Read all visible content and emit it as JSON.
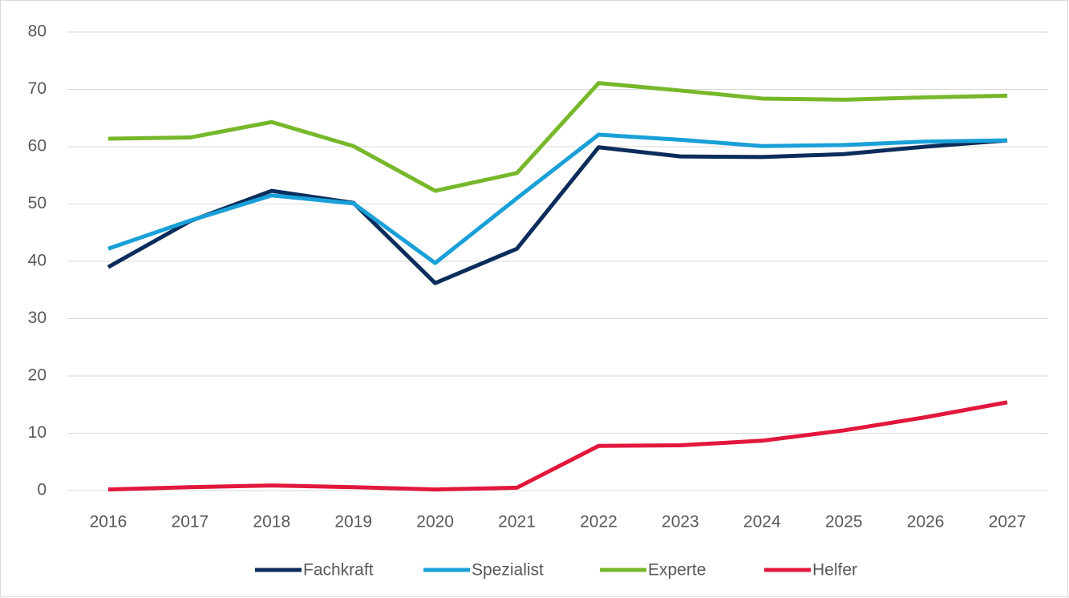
{
  "chart_data": {
    "type": "line",
    "categories": [
      "2016",
      "2017",
      "2018",
      "2019",
      "2020",
      "2021",
      "2022",
      "2023",
      "2024",
      "2025",
      "2026",
      "2027"
    ],
    "series": [
      {
        "name": "Fachkraft",
        "color": "#0b2d5b",
        "values": [
          39.0,
          47.0,
          52.3,
          50.2,
          36.2,
          42.2,
          59.9,
          58.3,
          58.2,
          58.7,
          60.0,
          61.1
        ]
      },
      {
        "name": "Spezialist",
        "color": "#1aa0d8",
        "values": [
          42.2,
          47.1,
          51.5,
          50.1,
          39.7,
          51.0,
          62.1,
          61.2,
          60.1,
          60.3,
          60.9,
          61.1
        ]
      },
      {
        "name": "Experte",
        "color": "#76b82a",
        "values": [
          61.4,
          61.6,
          64.3,
          60.1,
          52.3,
          55.4,
          71.1,
          69.8,
          68.4,
          68.2,
          68.6,
          68.9
        ]
      },
      {
        "name": "Helfer",
        "color": "#e2173c",
        "values": [
          0.2,
          0.6,
          0.9,
          0.6,
          0.2,
          0.5,
          7.8,
          7.9,
          8.7,
          10.5,
          12.8,
          15.4
        ]
      }
    ],
    "ylim": [
      0,
      80
    ],
    "yticks": [
      0,
      10,
      20,
      30,
      40,
      50,
      60,
      70,
      80
    ],
    "grid": true,
    "legend": "bottom"
  }
}
